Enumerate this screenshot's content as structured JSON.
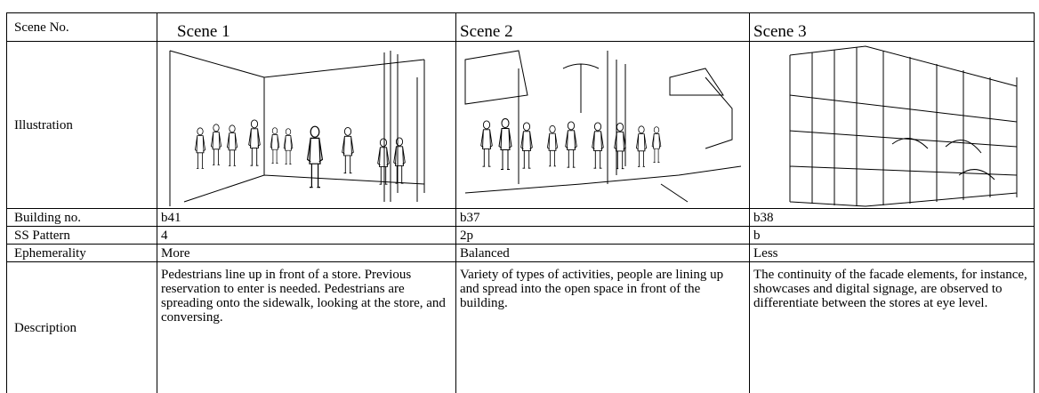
{
  "table": {
    "header": [
      "Scene No.",
      "Scene 1",
      "Scene 2",
      "Scene 3"
    ],
    "illustration_label": "Illustration",
    "rows": [
      [
        "Building no.",
        "b41",
        "b37",
        "b38"
      ],
      [
        "SS Pattern",
        "4",
        "2p",
        "b"
      ],
      [
        "Ephemerality",
        "More",
        "Balanced",
        "Less"
      ],
      [
        "Description",
        "Pedestrians line up in front of a store. Previous reservation to enter is needed. Pedestrians are spreading onto the sidewalk, looking at the store, and conversing.",
        "Variety of types of activities, people are lining up and spread into the open space in front of the building.",
        "The continuity of the facade elements, for instance, showcases and digital signage, are observed to differentiate between the stores at eye level."
      ]
    ]
  }
}
